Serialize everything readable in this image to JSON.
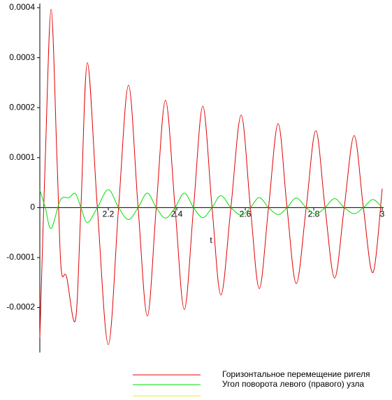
{
  "chart_data": {
    "type": "line",
    "xlabel": "t",
    "xlim": [
      2.0,
      3.0
    ],
    "ylim": [
      -0.00029,
      0.0004
    ],
    "xticks": [
      2.2,
      2.4,
      2.6,
      2.8,
      3
    ],
    "yticks": [
      -0.0002,
      -0.0001,
      0,
      0.0001,
      0.0002,
      0.0003,
      0.0004
    ],
    "series": [
      {
        "name": "Горизонтальное перемещение ригеля",
        "color": "#e00000",
        "x": [
          2.0,
          2.016,
          2.033,
          2.05,
          2.062,
          2.078,
          2.104,
          2.12,
          2.139,
          2.168,
          2.2,
          2.23,
          2.259,
          2.287,
          2.314,
          2.34,
          2.367,
          2.395,
          2.422,
          2.449,
          2.476,
          2.503,
          2.529,
          2.558,
          2.588,
          2.615,
          2.641,
          2.668,
          2.696,
          2.722,
          2.749,
          2.778,
          2.806,
          2.833,
          2.861,
          2.889,
          2.918,
          2.945,
          2.973,
          3.0
        ],
        "values": [
          -0.00026,
          0.0001,
          0.000397,
          0.0001,
          -0.00012,
          -0.000138,
          -0.000225,
          0,
          0.00029,
          0,
          -0.000274,
          0,
          0.000245,
          0,
          -0.000217,
          0,
          0.000215,
          0,
          -0.000204,
          0,
          0.000203,
          0,
          -0.000175,
          0,
          0.000185,
          0,
          -0.000162,
          0,
          0.000168,
          0,
          -0.000152,
          0,
          0.000154,
          0,
          -0.000141,
          0,
          0.000144,
          0,
          -0.00013,
          3.8e-05
        ]
      },
      {
        "name": "Угол поворота левого (правого) узла",
        "color": "#00e000",
        "x": [
          2.0,
          2.016,
          2.033,
          2.06,
          2.085,
          2.104,
          2.12,
          2.139,
          2.168,
          2.2,
          2.23,
          2.259,
          2.287,
          2.314,
          2.34,
          2.367,
          2.395,
          2.422,
          2.449,
          2.476,
          2.503,
          2.529,
          2.558,
          2.588,
          2.615,
          2.641,
          2.668,
          2.696,
          2.722,
          2.749,
          2.778,
          2.806,
          2.833,
          2.861,
          2.889,
          2.918,
          2.945,
          2.973,
          3.0
        ],
        "values": [
          3.5e-05,
          0,
          -4.2e-05,
          1.5e-05,
          2e-05,
          2.8e-05,
          0,
          -3e-05,
          0,
          3.6e-05,
          0,
          -2.4e-05,
          0,
          2.9e-05,
          0,
          -2.1e-05,
          0,
          2.9e-05,
          0,
          -2e-05,
          0,
          2.4e-05,
          0,
          -1.5e-05,
          0,
          2e-05,
          0,
          -1.4e-05,
          0,
          1.9e-05,
          0,
          -1.3e-05,
          0,
          1.8e-05,
          0,
          -1.2e-05,
          0,
          1.6e-05,
          0
        ]
      }
    ]
  }
}
